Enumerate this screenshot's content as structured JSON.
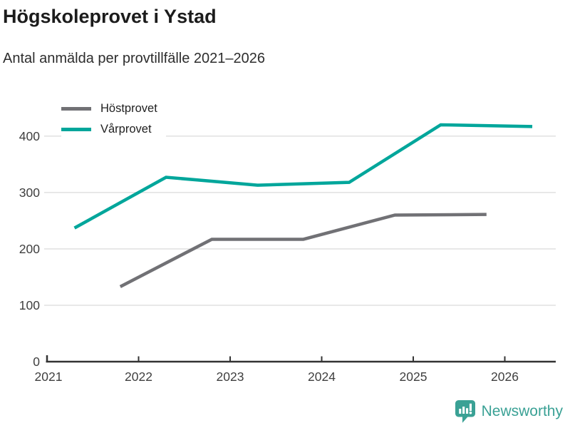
{
  "header": {
    "title": "Högskoleprovet i Ystad",
    "subtitle": "Antal anmälda per provtillfälle 2021–2026"
  },
  "chart_data": {
    "type": "line",
    "title": "Högskoleprovet i Ystad",
    "subtitle": "Antal anmälda per provtillfälle 2021–2026",
    "x_tick_labels": [
      "2021",
      "2022",
      "2023",
      "2024",
      "2025",
      "2026"
    ],
    "x_tick_years": [
      2021,
      2022,
      2023,
      2024,
      2025,
      2026
    ],
    "y_ticks": [
      0,
      100,
      200,
      300,
      400
    ],
    "ylim": [
      0,
      440
    ],
    "xlim": [
      2021,
      2026.65
    ],
    "grid": true,
    "legend_position": "top-left",
    "series": [
      {
        "name": "Höstprovet",
        "color": "#717175",
        "x": [
          2021.8,
          2022.8,
          2023.8,
          2024.8,
          2025.8
        ],
        "values": [
          133,
          217,
          217,
          260,
          261
        ]
      },
      {
        "name": "Vårprovet",
        "color": "#00a69b",
        "x": [
          2021.3,
          2022.3,
          2023.3,
          2024.3,
          2025.3,
          2026.3
        ],
        "values": [
          237,
          327,
          313,
          318,
          420,
          417
        ]
      }
    ]
  },
  "axis_style": {
    "grid_color": "#dedede",
    "axis_color": "#333333",
    "tick_label_color": "#3f3f3f"
  },
  "footer": {
    "brand": "Newsworthy",
    "brand_color": "#3aa195"
  }
}
